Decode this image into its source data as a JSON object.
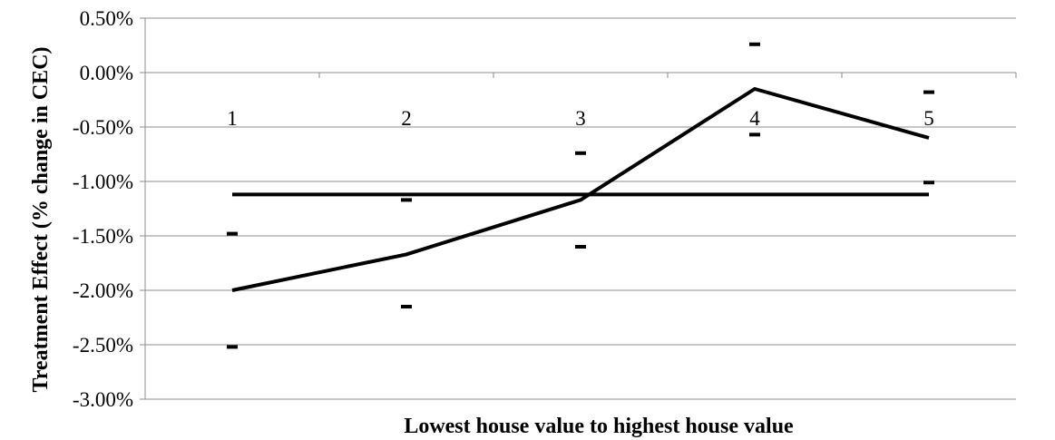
{
  "chart_data": {
    "type": "line",
    "xlabel": "Lowest house value to highest house value",
    "ylabel": "Treatment Effect (% change in CEC)",
    "ylim": [
      -3.0,
      0.5
    ],
    "yticks": [
      "0.50%",
      "0.00%",
      "-0.50%",
      "-1.00%",
      "-1.50%",
      "-2.00%",
      "-2.50%",
      "-3.00%"
    ],
    "ytick_values": [
      0.5,
      0.0,
      -0.5,
      -1.0,
      -1.5,
      -2.0,
      -2.5,
      -3.0
    ],
    "categories": [
      "1",
      "2",
      "3",
      "4",
      "5"
    ],
    "series": [
      {
        "values": [
          -2.0,
          -1.67,
          -1.17,
          -0.15,
          -0.6
        ]
      },
      {
        "values": [
          -1.12,
          -1.12,
          -1.12,
          -1.12,
          -1.12
        ]
      }
    ],
    "upper_bound": [
      -1.48,
      -1.17,
      -0.74,
      0.26,
      -0.18
    ],
    "lower_bound": [
      -2.52,
      -2.15,
      -1.6,
      -0.57,
      -1.01
    ],
    "grid": true,
    "legend": "none",
    "colors": {
      "line": "#000000",
      "grid": "#8c8c8c",
      "axis": "#8c8c8c"
    }
  }
}
